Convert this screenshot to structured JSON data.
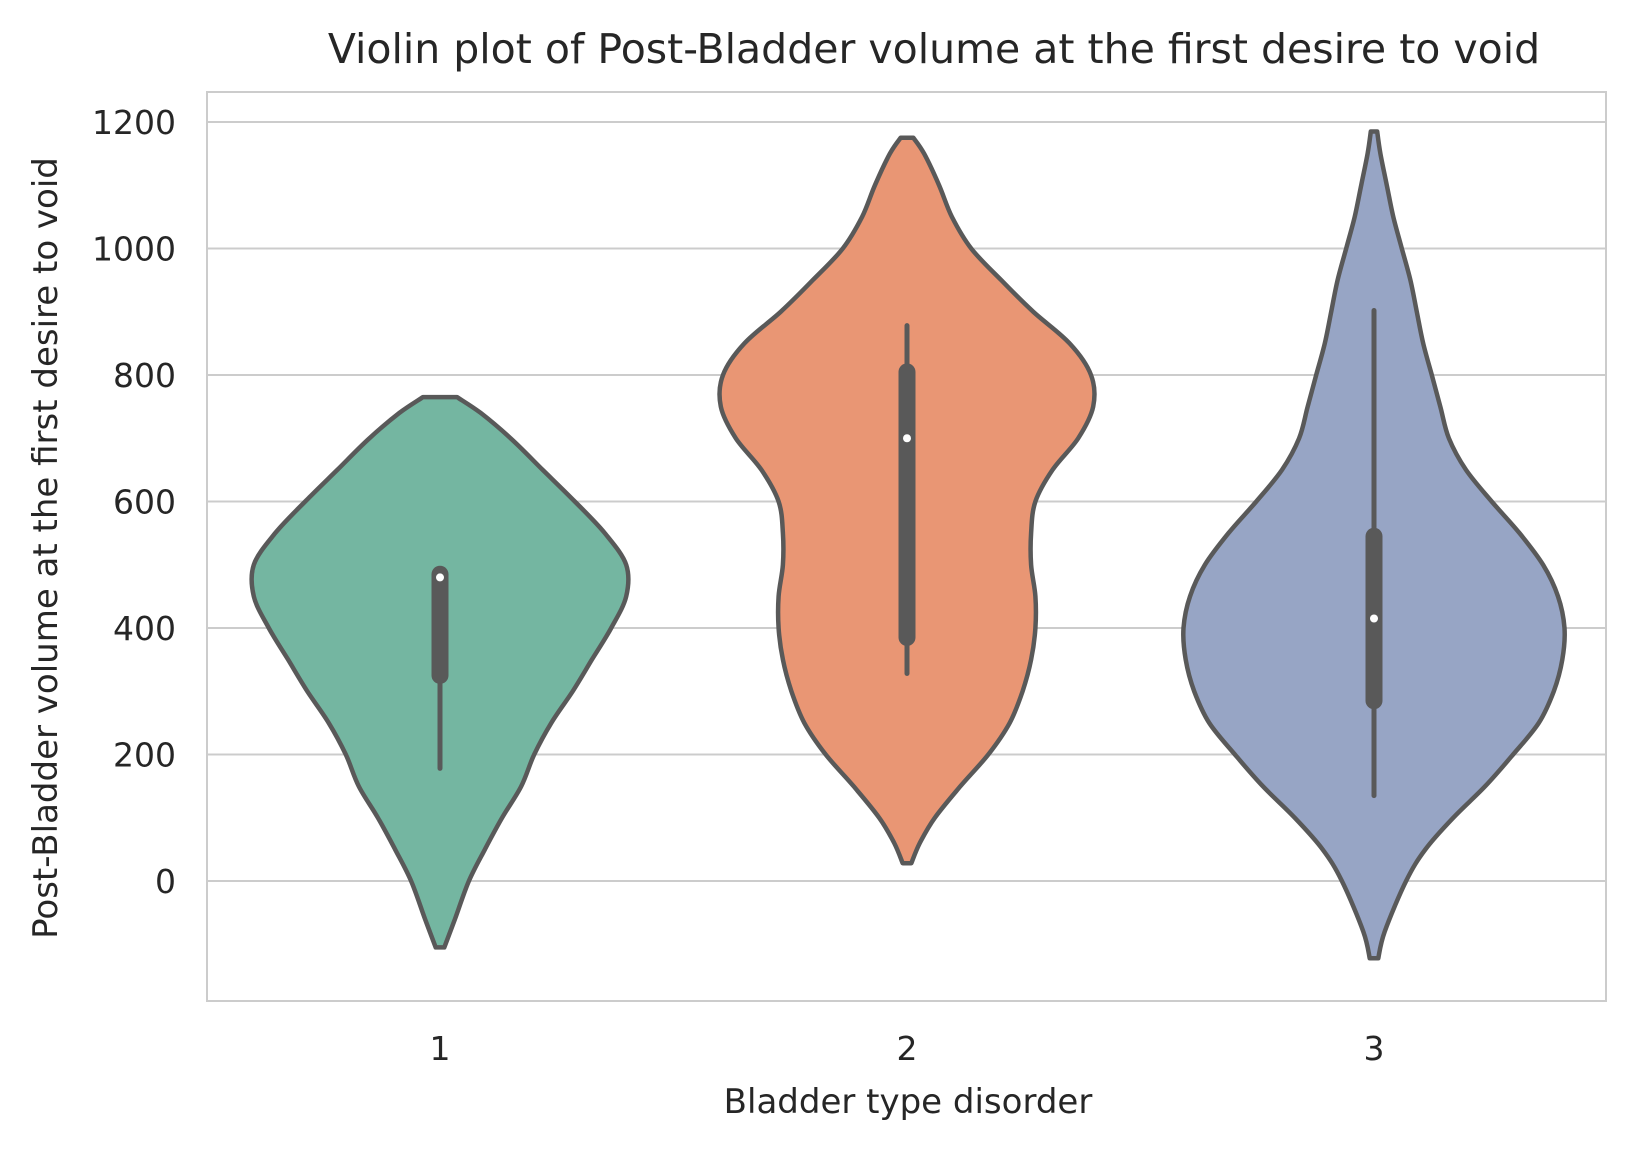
{
  "chart_data": {
    "type": "violin",
    "title": "Violin plot of Post-Bladder volume at the first desire to void",
    "xlabel": "Bladder type disorder",
    "ylabel": "Post-Bladder volume at the first desire to void",
    "categories": [
      "1",
      "2",
      "3"
    ],
    "ylim": [
      -190,
      1250
    ],
    "yticks": [
      0,
      200,
      400,
      600,
      800,
      1000,
      1200
    ],
    "grid": "horizontal",
    "colors": {
      "1": "#74B6A1",
      "2": "#E99674",
      "3": "#97A5C5",
      "outline": "#595959",
      "grid": "#cccccc",
      "spine": "#cccccc"
    },
    "violins": [
      {
        "category": "1",
        "min": -105,
        "max": 765,
        "quartiles": [
          325,
          485
        ],
        "median": 480,
        "whiskers": [
          178,
          490
        ],
        "profile": [
          [
            -105,
            0.04
          ],
          [
            -60,
            0.14
          ],
          [
            0,
            0.27
          ],
          [
            50,
            0.42
          ],
          [
            100,
            0.58
          ],
          [
            150,
            0.76
          ],
          [
            200,
            0.88
          ],
          [
            250,
            1.04
          ],
          [
            300,
            1.24
          ],
          [
            350,
            1.42
          ],
          [
            400,
            1.6
          ],
          [
            450,
            1.74
          ],
          [
            500,
            1.74
          ],
          [
            550,
            1.54
          ],
          [
            600,
            1.26
          ],
          [
            650,
            0.96
          ],
          [
            700,
            0.66
          ],
          [
            740,
            0.38
          ],
          [
            765,
            0.16
          ]
        ]
      },
      {
        "category": "2",
        "min": 28,
        "max": 1175,
        "quartiles": [
          385,
          805
        ],
        "median": 700,
        "whiskers": [
          328,
          878
        ],
        "profile": [
          [
            28,
            0.04
          ],
          [
            60,
            0.12
          ],
          [
            100,
            0.26
          ],
          [
            150,
            0.5
          ],
          [
            200,
            0.76
          ],
          [
            250,
            0.96
          ],
          [
            300,
            1.08
          ],
          [
            350,
            1.16
          ],
          [
            400,
            1.2
          ],
          [
            450,
            1.2
          ],
          [
            500,
            1.16
          ],
          [
            550,
            1.16
          ],
          [
            600,
            1.2
          ],
          [
            650,
            1.36
          ],
          [
            700,
            1.6
          ],
          [
            750,
            1.74
          ],
          [
            800,
            1.72
          ],
          [
            850,
            1.52
          ],
          [
            900,
            1.18
          ],
          [
            950,
            0.88
          ],
          [
            1000,
            0.6
          ],
          [
            1050,
            0.42
          ],
          [
            1100,
            0.3
          ],
          [
            1150,
            0.16
          ],
          [
            1175,
            0.06
          ]
        ]
      },
      {
        "category": "3",
        "min": -122,
        "max": 1185,
        "quartiles": [
          285,
          545
        ],
        "median": 415,
        "whiskers": [
          135,
          902
        ],
        "profile": [
          [
            -122,
            0.04
          ],
          [
            -80,
            0.1
          ],
          [
            0,
            0.3
          ],
          [
            50,
            0.48
          ],
          [
            100,
            0.74
          ],
          [
            150,
            1.04
          ],
          [
            200,
            1.3
          ],
          [
            250,
            1.54
          ],
          [
            300,
            1.68
          ],
          [
            350,
            1.76
          ],
          [
            400,
            1.78
          ],
          [
            450,
            1.72
          ],
          [
            500,
            1.58
          ],
          [
            550,
            1.36
          ],
          [
            600,
            1.1
          ],
          [
            650,
            0.86
          ],
          [
            700,
            0.7
          ],
          [
            750,
            0.62
          ],
          [
            800,
            0.54
          ],
          [
            850,
            0.46
          ],
          [
            900,
            0.4
          ],
          [
            950,
            0.34
          ],
          [
            1000,
            0.26
          ],
          [
            1050,
            0.18
          ],
          [
            1100,
            0.12
          ],
          [
            1150,
            0.06
          ],
          [
            1185,
            0.03
          ]
        ]
      }
    ]
  }
}
